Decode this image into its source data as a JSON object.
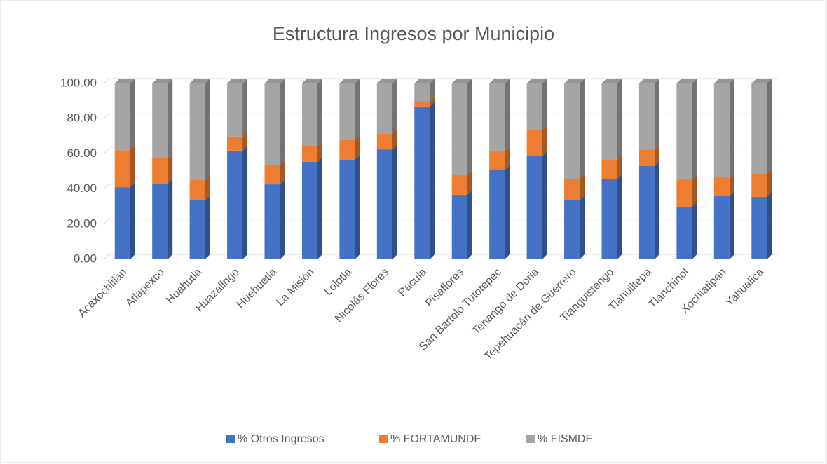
{
  "chart_data": {
    "type": "bar",
    "stacked": true,
    "title": "Estructura Ingresos por Municipio",
    "categories": [
      "Acaxochitlan",
      "Atlapexco",
      "Huahutla",
      "Huazalingo",
      "Huehuetla",
      "La Misión",
      "Lolotla",
      "Nicolás Flores",
      "Pacula",
      "Pisaflores",
      "San Bartolo Tutotepec",
      "Tenango de Doria",
      "Tepehuacán de Guerrero",
      "Tianguistengo",
      "Tlahuiltepa",
      "Tlanchinol",
      "Xochiatipan",
      "Yahualica"
    ],
    "series": [
      {
        "name": "% Otros Ingresos",
        "color": "#4472c4",
        "values": [
          41.0,
          43.0,
          33.5,
          61.8,
          42.6,
          55.4,
          56.6,
          62.5,
          86.9,
          36.7,
          50.6,
          58.6,
          33.5,
          45.8,
          53.0,
          29.9,
          35.9,
          35.5
        ]
      },
      {
        "name": "% FORTAMUNDF",
        "color": "#ed7d31",
        "values": [
          21.0,
          14.4,
          11.5,
          8.0,
          10.8,
          9.1,
          11.4,
          8.8,
          3.1,
          11.1,
          10.8,
          15.4,
          12.3,
          10.8,
          9.5,
          15.5,
          10.7,
          13.1
        ]
      },
      {
        "name": "% FISMDF",
        "color": "#a5a5a5",
        "values": [
          38.0,
          42.6,
          55.0,
          30.2,
          46.6,
          35.5,
          32.0,
          28.7,
          10.0,
          52.2,
          38.6,
          26.0,
          54.2,
          43.4,
          37.5,
          54.6,
          53.4,
          51.4
        ]
      }
    ],
    "ylim": [
      0,
      100
    ],
    "yticks": [
      {
        "value": 0,
        "label": "0.00"
      },
      {
        "value": 20,
        "label": "20.00"
      },
      {
        "value": 40,
        "label": "40.00"
      },
      {
        "value": 60,
        "label": "60.00"
      },
      {
        "value": 80,
        "label": "80.00"
      },
      {
        "value": 100,
        "label": "100.00"
      }
    ],
    "grid": true,
    "legend": "bottom"
  }
}
